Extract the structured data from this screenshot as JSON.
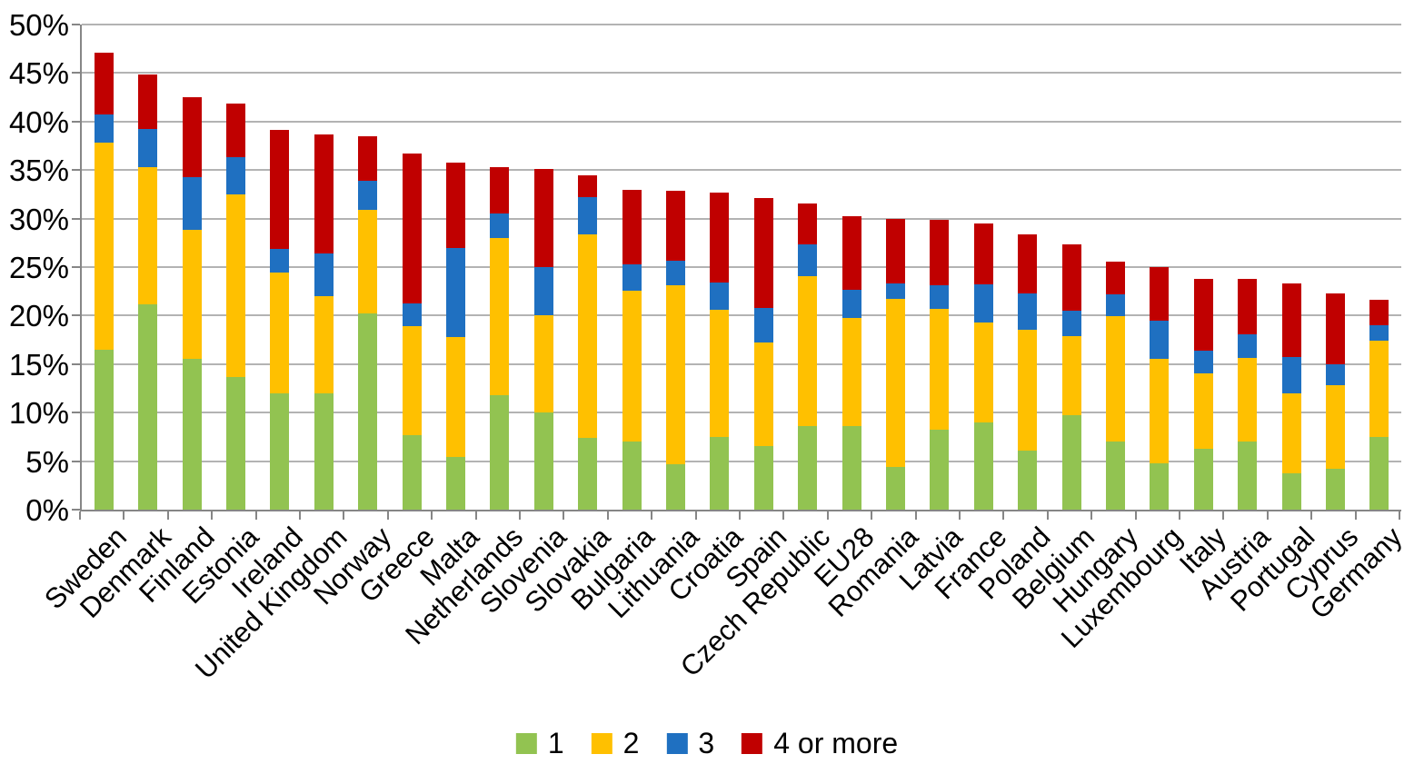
{
  "chart_data": {
    "type": "bar",
    "stacked": true,
    "title": "",
    "xlabel": "",
    "ylabel": "",
    "ylim": [
      0,
      50
    ],
    "ytick_step": 5,
    "yticks": [
      "0%",
      "5%",
      "10%",
      "15%",
      "20%",
      "25%",
      "30%",
      "35%",
      "40%",
      "45%",
      "50%"
    ],
    "grid": true,
    "legend_position": "bottom",
    "categories": [
      "Sweden",
      "Denmark",
      "Finland",
      "Estonia",
      "Ireland",
      "United Kingdom",
      "Norway",
      "Greece",
      "Malta",
      "Netherlands",
      "Slovenia",
      "Slovakia",
      "Bulgaria",
      "Lithuania",
      "Croatia",
      "Spain",
      "Czech Republic",
      "EU28",
      "Romania",
      "Latvia",
      "France",
      "Poland",
      "Belgium",
      "Hungary",
      "Luxembourg",
      "Italy",
      "Austria",
      "Portugal",
      "Cyprus",
      "Germany"
    ],
    "series": [
      {
        "name": "1",
        "color": "#92C351",
        "values": [
          16.5,
          21.2,
          15.5,
          13.7,
          12.0,
          12.0,
          20.2,
          7.7,
          5.4,
          11.8,
          10.0,
          7.4,
          7.0,
          4.7,
          7.5,
          6.6,
          8.6,
          8.6,
          4.4,
          8.2,
          9.0,
          6.1,
          9.7,
          7.0,
          4.8,
          6.3,
          7.0,
          3.7,
          4.2,
          7.5
        ]
      },
      {
        "name": "2",
        "color": "#FFC000",
        "values": [
          21.3,
          14.1,
          13.3,
          18.8,
          12.4,
          10.0,
          10.7,
          11.2,
          12.4,
          16.2,
          10.0,
          21.0,
          15.6,
          18.4,
          13.1,
          10.6,
          15.5,
          11.2,
          17.3,
          12.5,
          10.3,
          12.4,
          8.2,
          12.9,
          10.7,
          7.7,
          8.6,
          8.3,
          8.6,
          9.9
        ]
      },
      {
        "name": "3",
        "color": "#1F70C1",
        "values": [
          2.9,
          3.9,
          5.5,
          3.8,
          2.5,
          4.4,
          3.0,
          2.4,
          9.2,
          2.5,
          5.0,
          3.8,
          2.7,
          2.6,
          2.8,
          3.6,
          3.2,
          2.9,
          1.6,
          2.4,
          3.9,
          3.8,
          2.6,
          2.3,
          4.0,
          2.4,
          2.5,
          3.7,
          2.2,
          1.6
        ]
      },
      {
        "name": "4 or more",
        "color": "#C00000",
        "values": [
          6.4,
          5.7,
          8.2,
          5.6,
          12.2,
          12.3,
          4.6,
          15.4,
          8.8,
          4.8,
          10.1,
          2.3,
          7.7,
          7.2,
          9.3,
          11.3,
          4.3,
          7.5,
          6.7,
          6.8,
          6.3,
          6.1,
          6.8,
          3.4,
          5.5,
          7.4,
          5.7,
          7.6,
          7.3,
          2.6
        ]
      }
    ]
  },
  "colors": {
    "background": "#FFFFFF",
    "gridline": "#A6A6A6",
    "axis": "#868686",
    "text": "#000000"
  }
}
